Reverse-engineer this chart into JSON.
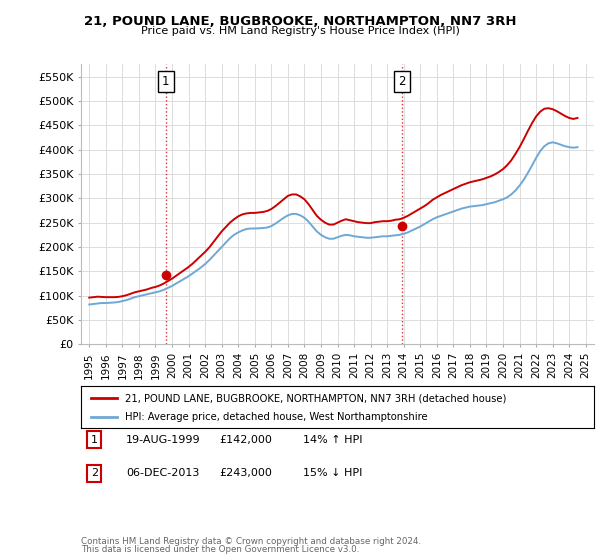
{
  "title": "21, POUND LANE, BUGBROOKE, NORTHAMPTON, NN7 3RH",
  "subtitle": "Price paid vs. HM Land Registry's House Price Index (HPI)",
  "red_label": "21, POUND LANE, BUGBROOKE, NORTHAMPTON, NN7 3RH (detached house)",
  "blue_label": "HPI: Average price, detached house, West Northamptonshire",
  "sale1_label": "19-AUG-1999",
  "sale1_price": "£142,000",
  "sale1_hpi": "14% ↑ HPI",
  "sale1_x": 1999.63,
  "sale1_y": 142000,
  "sale2_label": "06-DEC-2013",
  "sale2_price": "£243,000",
  "sale2_hpi": "15% ↓ HPI",
  "sale2_x": 2013.92,
  "sale2_y": 243000,
  "red_color": "#cc0000",
  "blue_color": "#6fa8d4",
  "background_color": "#ffffff",
  "grid_color": "#dddddd",
  "ylim": [
    0,
    575000
  ],
  "yticks": [
    0,
    50000,
    100000,
    150000,
    200000,
    250000,
    300000,
    350000,
    400000,
    450000,
    500000,
    550000
  ],
  "xlim": [
    1994.5,
    2025.5
  ],
  "footnote1": "Contains HM Land Registry data © Crown copyright and database right 2024.",
  "footnote2": "This data is licensed under the Open Government Licence v3.0.",
  "hpi_x": [
    1995,
    1995.25,
    1995.5,
    1995.75,
    1996,
    1996.25,
    1996.5,
    1996.75,
    1997,
    1997.25,
    1997.5,
    1997.75,
    1998,
    1998.25,
    1998.5,
    1998.75,
    1999,
    1999.25,
    1999.5,
    1999.75,
    2000,
    2000.25,
    2000.5,
    2000.75,
    2001,
    2001.25,
    2001.5,
    2001.75,
    2002,
    2002.25,
    2002.5,
    2002.75,
    2003,
    2003.25,
    2003.5,
    2003.75,
    2004,
    2004.25,
    2004.5,
    2004.75,
    2005,
    2005.25,
    2005.5,
    2005.75,
    2006,
    2006.25,
    2006.5,
    2006.75,
    2007,
    2007.25,
    2007.5,
    2007.75,
    2008,
    2008.25,
    2008.5,
    2008.75,
    2009,
    2009.25,
    2009.5,
    2009.75,
    2010,
    2010.25,
    2010.5,
    2010.75,
    2011,
    2011.25,
    2011.5,
    2011.75,
    2012,
    2012.25,
    2012.5,
    2012.75,
    2013,
    2013.25,
    2013.5,
    2013.75,
    2014,
    2014.25,
    2014.5,
    2014.75,
    2015,
    2015.25,
    2015.5,
    2015.75,
    2016,
    2016.25,
    2016.5,
    2016.75,
    2017,
    2017.25,
    2017.5,
    2017.75,
    2018,
    2018.25,
    2018.5,
    2018.75,
    2019,
    2019.25,
    2019.5,
    2019.75,
    2020,
    2020.25,
    2020.5,
    2020.75,
    2021,
    2021.25,
    2021.5,
    2021.75,
    2022,
    2022.25,
    2022.5,
    2022.75,
    2023,
    2023.25,
    2023.5,
    2023.75,
    2024,
    2024.25,
    2024.5
  ],
  "hpi_y": [
    82000,
    83000,
    84000,
    85000,
    85000,
    85500,
    86000,
    87000,
    89000,
    91000,
    94000,
    97000,
    99000,
    101000,
    103000,
    105000,
    107000,
    109000,
    112000,
    116000,
    120000,
    125000,
    130000,
    135000,
    140000,
    146000,
    152000,
    158000,
    165000,
    173000,
    182000,
    191000,
    200000,
    209000,
    218000,
    225000,
    230000,
    234000,
    237000,
    238000,
    238000,
    238500,
    239000,
    240000,
    243000,
    248000,
    254000,
    260000,
    265000,
    268000,
    268000,
    265000,
    260000,
    252000,
    242000,
    232000,
    225000,
    220000,
    217000,
    217000,
    220000,
    223000,
    225000,
    224000,
    222000,
    221000,
    220000,
    219000,
    219000,
    220000,
    221000,
    222000,
    222000,
    223000,
    224000,
    225000,
    227000,
    230000,
    234000,
    238000,
    242000,
    247000,
    252000,
    257000,
    261000,
    264000,
    267000,
    270000,
    273000,
    276000,
    279000,
    281000,
    283000,
    284000,
    285000,
    286000,
    288000,
    290000,
    292000,
    295000,
    298000,
    302000,
    308000,
    316000,
    326000,
    338000,
    352000,
    367000,
    383000,
    397000,
    407000,
    413000,
    415000,
    413000,
    410000,
    407000,
    405000,
    404000,
    405000
  ],
  "red_x": [
    1995,
    1995.25,
    1995.5,
    1995.75,
    1996,
    1996.25,
    1996.5,
    1996.75,
    1997,
    1997.25,
    1997.5,
    1997.75,
    1998,
    1998.25,
    1998.5,
    1998.75,
    1999,
    1999.25,
    1999.5,
    1999.75,
    2000,
    2000.25,
    2000.5,
    2000.75,
    2001,
    2001.25,
    2001.5,
    2001.75,
    2002,
    2002.25,
    2002.5,
    2002.75,
    2003,
    2003.25,
    2003.5,
    2003.75,
    2004,
    2004.25,
    2004.5,
    2004.75,
    2005,
    2005.25,
    2005.5,
    2005.75,
    2006,
    2006.25,
    2006.5,
    2006.75,
    2007,
    2007.25,
    2007.5,
    2007.75,
    2008,
    2008.25,
    2008.5,
    2008.75,
    2009,
    2009.25,
    2009.5,
    2009.75,
    2010,
    2010.25,
    2010.5,
    2010.75,
    2011,
    2011.25,
    2011.5,
    2011.75,
    2012,
    2012.25,
    2012.5,
    2012.75,
    2013,
    2013.25,
    2013.5,
    2013.75,
    2014,
    2014.25,
    2014.5,
    2014.75,
    2015,
    2015.25,
    2015.5,
    2015.75,
    2016,
    2016.25,
    2016.5,
    2016.75,
    2017,
    2017.25,
    2017.5,
    2017.75,
    2018,
    2018.25,
    2018.5,
    2018.75,
    2019,
    2019.25,
    2019.5,
    2019.75,
    2020,
    2020.25,
    2020.5,
    2020.75,
    2021,
    2021.25,
    2021.5,
    2021.75,
    2022,
    2022.25,
    2022.5,
    2022.75,
    2023,
    2023.25,
    2023.5,
    2023.75,
    2024,
    2024.25,
    2024.5
  ],
  "red_y": [
    96000,
    97000,
    98000,
    97500,
    97000,
    97000,
    97000,
    97500,
    99000,
    101000,
    104000,
    107000,
    109000,
    111000,
    113000,
    116000,
    118000,
    121000,
    125000,
    130000,
    135000,
    141000,
    147000,
    153000,
    159000,
    166000,
    174000,
    182000,
    190000,
    199000,
    210000,
    221000,
    232000,
    241000,
    250000,
    257000,
    263000,
    267000,
    269000,
    270000,
    270000,
    271000,
    272000,
    274000,
    278000,
    284000,
    291000,
    298000,
    305000,
    308000,
    308000,
    304000,
    298000,
    288000,
    276000,
    264000,
    256000,
    250000,
    246000,
    246000,
    250000,
    254000,
    257000,
    255000,
    253000,
    251000,
    250000,
    249000,
    249000,
    251000,
    252000,
    253000,
    253000,
    254000,
    256000,
    257000,
    260000,
    264000,
    269000,
    274000,
    279000,
    284000,
    290000,
    297000,
    302000,
    307000,
    311000,
    315000,
    319000,
    323000,
    327000,
    330000,
    333000,
    335000,
    337000,
    339000,
    342000,
    345000,
    349000,
    354000,
    360000,
    368000,
    378000,
    391000,
    405000,
    421000,
    438000,
    454000,
    468000,
    478000,
    484000,
    485000,
    483000,
    479000,
    474000,
    469000,
    465000,
    463000,
    465000
  ]
}
